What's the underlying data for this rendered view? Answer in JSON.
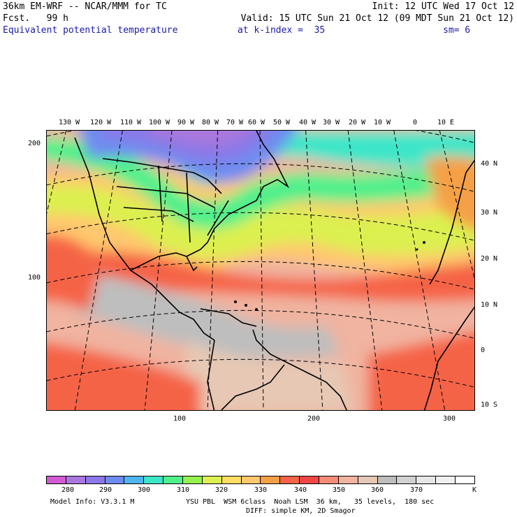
{
  "header": {
    "model": "36km EM-WRF -- NCAR/MMM for TC",
    "init": "Init: 12 UTC Wed 17 Oct 12",
    "forecast": "Fcst.   99 h",
    "valid": "Valid: 15 UTC Sun 21 Oct 12 (09 MDT Sun 21 Oct 12)",
    "field": "Equivalent potential temperature",
    "level": "at k-index =  35",
    "smoothing": "sm= 6"
  },
  "map": {
    "lon_labels": [
      "130 W",
      "120 W",
      "110 W",
      "100 W",
      "90 W",
      "80 W",
      "70 W",
      "60 W",
      "50 W",
      "40 W",
      "30 W",
      "20 W",
      "10 W",
      "0",
      "10 E"
    ],
    "lat_labels": [
      "40 N",
      "30 N",
      "20 N",
      "10 N",
      "0",
      "10 S"
    ],
    "y_grid_labels": [
      "200",
      "100"
    ],
    "x_grid_labels": [
      "100",
      "200",
      "300"
    ]
  },
  "colorbar": {
    "colors": [
      "#d25ad2",
      "#aa78dc",
      "#8c78e6",
      "#6e8cf0",
      "#50b4f0",
      "#3ce6c8",
      "#50f08c",
      "#96f050",
      "#dcf050",
      "#ffdc64",
      "#ffc86e",
      "#f5a046",
      "#f56446",
      "#f04646",
      "#f58c78",
      "#f0b4a0",
      "#e6c8b4",
      "#bebebe",
      "#d2d2d2",
      "#e6e6e6",
      "#f0f0f0",
      "#ffffff"
    ],
    "labels": [
      "280",
      "290",
      "300",
      "310",
      "320",
      "330",
      "340",
      "350",
      "360",
      "370"
    ],
    "unit": "K"
  },
  "footer": {
    "model_info": "Model Info: V3.3.1 M",
    "physics": "YSU PBL  WSM 6class  Noah LSM  36 km,   35 levels,  180 sec",
    "diffusion": "DIFF: simple KM, 2D Smagor"
  }
}
